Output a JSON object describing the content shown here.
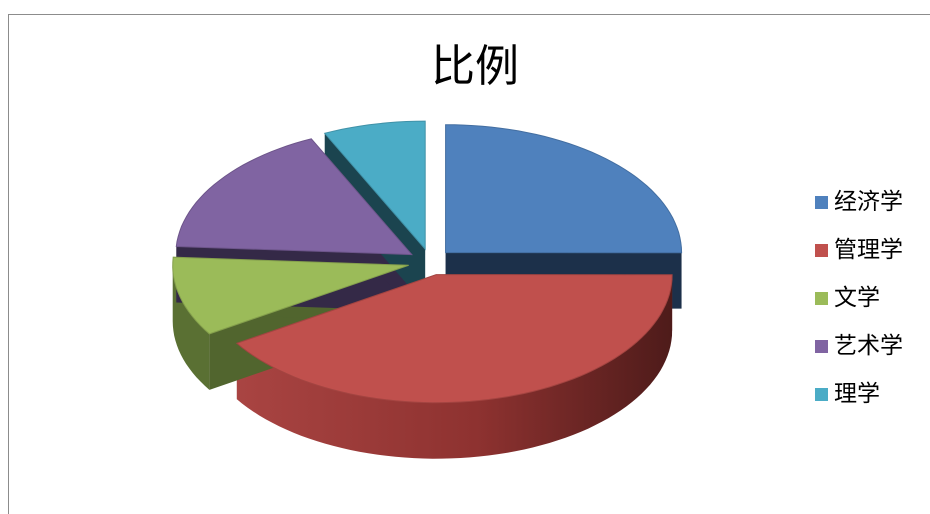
{
  "chart_data": {
    "type": "pie",
    "title": "比例",
    "categories": [
      "经济学",
      "管理学",
      "文学",
      "艺术学",
      "理学"
    ],
    "values": [
      25,
      41,
      10,
      17,
      7
    ],
    "colors": [
      "#4F81BD",
      "#C0504D",
      "#9BBB59",
      "#8064A2",
      "#4BACC6"
    ],
    "legend_position": "right",
    "style": "3d-exploded"
  }
}
